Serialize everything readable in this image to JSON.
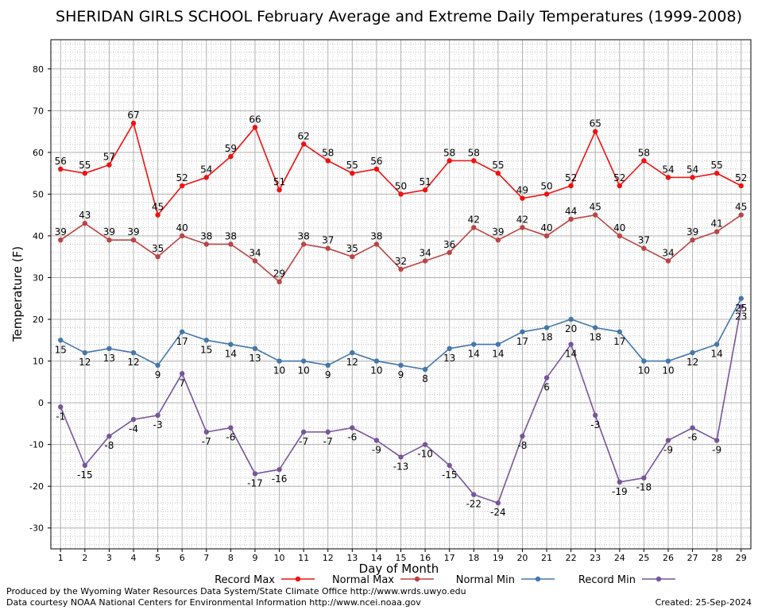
{
  "chart_data": {
    "type": "line",
    "title": "SHERIDAN GIRLS SCHOOL February Average and Extreme Daily Temperatures (1999-2008)",
    "xlabel": "Day of Month",
    "ylabel": "Temperature (F)",
    "x": [
      1,
      2,
      3,
      4,
      5,
      6,
      7,
      8,
      9,
      10,
      11,
      12,
      13,
      14,
      15,
      16,
      17,
      18,
      19,
      20,
      21,
      22,
      23,
      24,
      25,
      26,
      27,
      28,
      29
    ],
    "ylim": [
      -35,
      87
    ],
    "yticks": [
      -30,
      -20,
      -10,
      0,
      10,
      20,
      30,
      40,
      50,
      60,
      70,
      80
    ],
    "grid": true,
    "legend_position": "bottom",
    "series": [
      {
        "name": "Record Max",
        "color": "#ee1111",
        "values": [
          56,
          55,
          57,
          67,
          45,
          52,
          54,
          59,
          66,
          51,
          62,
          58,
          55,
          56,
          50,
          51,
          58,
          58,
          55,
          49,
          50,
          52,
          65,
          52,
          58,
          54,
          54,
          55,
          52
        ]
      },
      {
        "name": "Normal Max",
        "color": "#bb4444",
        "values": [
          39,
          43,
          39,
          39,
          35,
          40,
          38,
          38,
          34,
          29,
          38,
          37,
          35,
          38,
          32,
          34,
          36,
          42,
          39,
          42,
          40,
          44,
          45,
          40,
          37,
          34,
          39,
          41,
          45
        ]
      },
      {
        "name": "Normal Min",
        "color": "#4477aa",
        "values": [
          15,
          12,
          13,
          12,
          9,
          17,
          15,
          14,
          13,
          10,
          10,
          9,
          12,
          10,
          9,
          8,
          13,
          14,
          14,
          17,
          18,
          20,
          18,
          17,
          10,
          10,
          12,
          14,
          25
        ]
      },
      {
        "name": "Record Min",
        "color": "#775599",
        "values": [
          -1,
          -15,
          -8,
          -4,
          -3,
          7,
          -7,
          -6,
          -17,
          -16,
          -7,
          -7,
          -6,
          -9,
          -13,
          -10,
          -15,
          -22,
          -24,
          -8,
          6,
          14,
          -3,
          -19,
          -18,
          -9,
          -6,
          -9,
          23
        ]
      }
    ]
  },
  "footer": {
    "produced_by": "Produced by the Wyoming Water Resources Data System/State Climate Office http://www.wrds.uwyo.edu",
    "courtesy": "Data courtesy NOAA National Centers for Environmental Information http://www.ncei.noaa.gov",
    "created": "Created:  25-Sep-2024"
  }
}
